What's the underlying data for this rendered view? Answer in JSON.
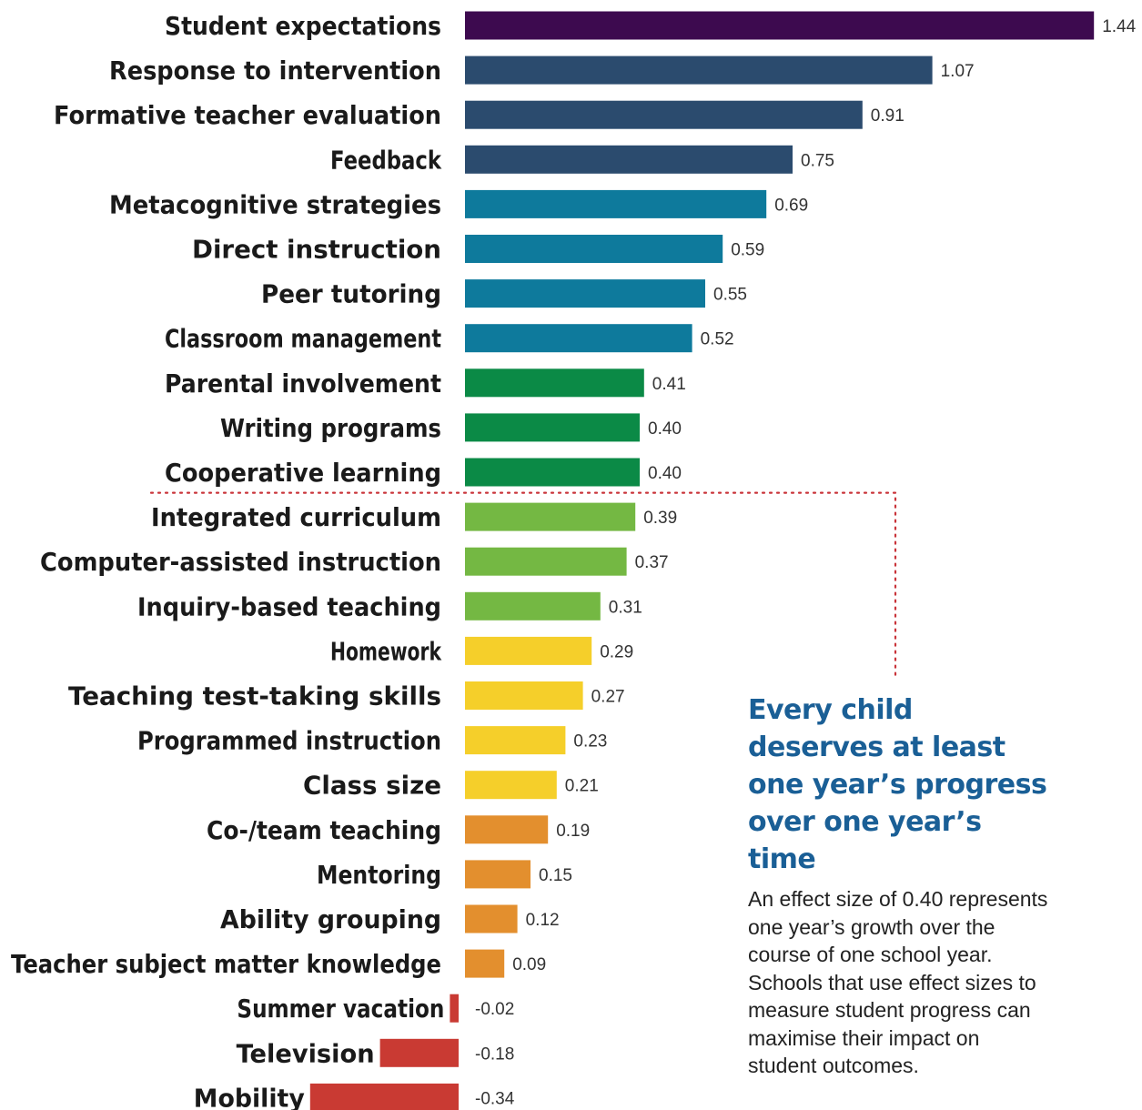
{
  "chart_data": {
    "type": "bar",
    "orientation": "horizontal",
    "categories": [
      "Student expectations",
      "Response to intervention",
      "Formative teacher evaluation",
      "Feedback",
      "Metacognitive strategies",
      "Direct instruction",
      "Peer tutoring",
      "Classroom management",
      "Parental involvement",
      "Writing programs",
      "Cooperative learning",
      "Integrated curriculum",
      "Computer-assisted instruction",
      "Inquiry-based teaching",
      "Homework",
      "Teaching test-taking skills",
      "Programmed instruction",
      "Class size",
      "Co-/team teaching",
      "Mentoring",
      "Ability grouping",
      "Teacher subject matter knowledge",
      "Summer vacation",
      "Television",
      "Mobility"
    ],
    "values": [
      1.44,
      1.07,
      0.91,
      0.75,
      0.69,
      0.59,
      0.55,
      0.52,
      0.41,
      0.4,
      0.4,
      0.39,
      0.37,
      0.31,
      0.29,
      0.27,
      0.23,
      0.21,
      0.19,
      0.15,
      0.12,
      0.09,
      -0.02,
      -0.18,
      -0.34
    ],
    "value_labels": [
      "1.44",
      "1.07",
      "0.91",
      "0.75",
      "0.69",
      "0.59",
      "0.55",
      "0.52",
      "0.41",
      "0.40",
      "0.40",
      "0.39",
      "0.37",
      "0.31",
      "0.29",
      "0.27",
      "0.23",
      "0.21",
      "0.19",
      "0.15",
      "0.12",
      "0.09",
      "-0.02",
      "-0.18",
      "-0.34"
    ],
    "colors": [
      "#3d0a4f",
      "#2b4b6e",
      "#2b4b6e",
      "#2b4b6e",
      "#0e7a9c",
      "#0e7a9c",
      "#0e7a9c",
      "#0e7a9c",
      "#0b8a46",
      "#0b8a46",
      "#0b8a46",
      "#74b843",
      "#74b843",
      "#74b843",
      "#f5cf2a",
      "#f5cf2a",
      "#f5cf2a",
      "#f5cf2a",
      "#e38f2e",
      "#e38f2e",
      "#e38f2e",
      "#e38f2e",
      "#c93a33",
      "#c93a33",
      "#c93a33"
    ],
    "threshold": 0.4,
    "threshold_line_color": "#c9343a",
    "xlim": [
      -0.34,
      1.44
    ],
    "grid": false,
    "legend": "none"
  },
  "annotation": {
    "heading": "Every child deserves at least one year’s progress over one year’s time",
    "body": "An effect size of 0.40 represents one year’s growth over the course of one school year. Schools that use effect sizes to measure student progress can maximise their impact on student outcomes."
  }
}
